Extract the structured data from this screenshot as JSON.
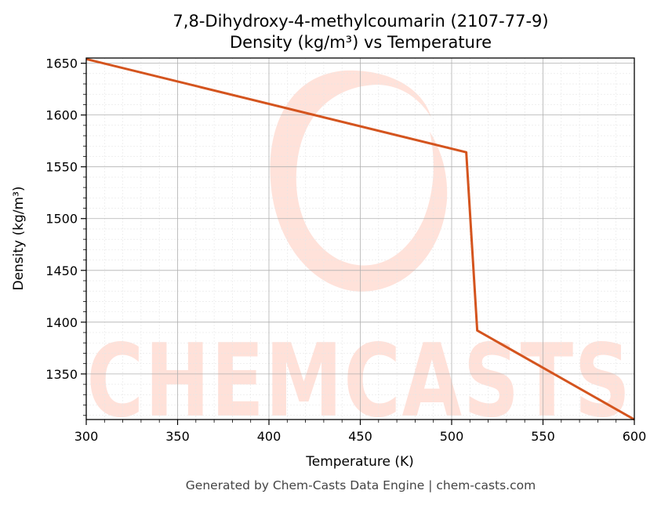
{
  "chart_data": {
    "type": "line",
    "title": "7,8-Dihydroxy-4-methylcoumarin (2107-77-9)",
    "subtitle": "Density (kg/m³) vs Temperature",
    "xlabel": "Temperature (K)",
    "ylabel": "Density (kg/m³)",
    "xlim": [
      300,
      600
    ],
    "ylim": [
      1306,
      1655
    ],
    "xticks": [
      300,
      350,
      400,
      450,
      500,
      550,
      600
    ],
    "yticks": [
      1350,
      1400,
      1450,
      1500,
      1550,
      1600,
      1650
    ],
    "grid": true,
    "series": [
      {
        "color": "#d4541e",
        "x": [
          300,
          508,
          514,
          600
        ],
        "y": [
          1654,
          1564,
          1392,
          1306
        ]
      }
    ]
  },
  "watermark": "CHEMCASTS",
  "footer": "Generated by Chem-Casts Data Engine | chem-casts.com"
}
